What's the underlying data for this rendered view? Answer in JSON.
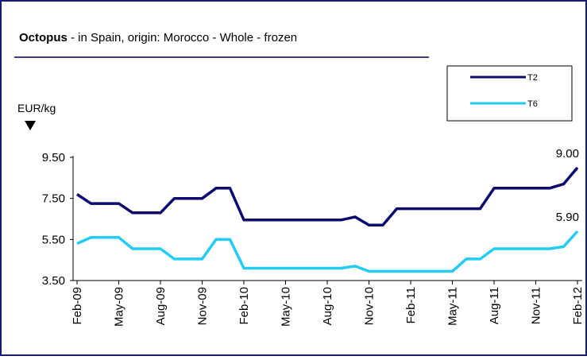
{
  "chart_data": {
    "type": "line",
    "title_bold": "Octopus",
    "title": "- in Spain, origin: Morocco - Whole - frozen",
    "y_label": "EUR/kg",
    "categories": [
      "Feb-09",
      null,
      null,
      "May-09",
      null,
      null,
      "Aug-09",
      null,
      null,
      "Nov-09",
      null,
      null,
      "Feb-10",
      null,
      null,
      "May-10",
      null,
      null,
      "Aug-10",
      null,
      null,
      "Nov-10",
      null,
      null,
      "Feb-11",
      null,
      null,
      "May-11",
      null,
      null,
      "Aug-11",
      null,
      null,
      "Nov-11",
      null,
      null,
      "Feb-12"
    ],
    "series": [
      {
        "name": "T2",
        "color": "#0b0b6e",
        "values": [
          7.7,
          7.25,
          7.25,
          7.25,
          6.8,
          6.8,
          6.8,
          7.5,
          7.5,
          7.5,
          8.0,
          8.0,
          6.45,
          6.45,
          6.45,
          6.45,
          6.45,
          6.45,
          6.45,
          6.45,
          6.6,
          6.2,
          6.2,
          7.0,
          7.0,
          7.0,
          7.0,
          7.0,
          7.0,
          7.0,
          8.0,
          8.0,
          8.0,
          8.0,
          8.0,
          8.2,
          9.0
        ],
        "value_labels": [
          null,
          null,
          null,
          null,
          null,
          null,
          null,
          null,
          null,
          null,
          null,
          null,
          null,
          null,
          null,
          null,
          null,
          null,
          null,
          null,
          null,
          null,
          null,
          null,
          null,
          null,
          null,
          null,
          null,
          null,
          null,
          null,
          null,
          null,
          null,
          null,
          "9.00"
        ]
      },
      {
        "name": "T6",
        "color": "#22ccf2",
        "values": [
          5.3,
          5.6,
          5.6,
          5.6,
          5.05,
          5.05,
          5.05,
          4.55,
          4.55,
          4.55,
          5.5,
          5.5,
          4.1,
          4.1,
          4.1,
          4.1,
          4.1,
          4.1,
          4.1,
          4.1,
          4.2,
          3.95,
          3.95,
          3.95,
          3.95,
          3.95,
          3.95,
          3.95,
          4.55,
          4.55,
          5.05,
          5.05,
          5.05,
          5.05,
          5.05,
          5.15,
          5.9
        ],
        "value_labels": [
          null,
          null,
          null,
          null,
          null,
          null,
          null,
          null,
          null,
          null,
          null,
          null,
          null,
          null,
          null,
          null,
          null,
          null,
          null,
          null,
          null,
          null,
          null,
          null,
          null,
          null,
          null,
          null,
          null,
          null,
          null,
          null,
          null,
          null,
          null,
          null,
          "5.90"
        ]
      }
    ],
    "ylim": [
      3.5,
      9.5
    ],
    "yticks": [
      {
        "value": 3.5,
        "label": "3.50"
      },
      {
        "value": 5.5,
        "label": "5.50"
      },
      {
        "value": 7.5,
        "label": "7.50"
      },
      {
        "value": 9.5,
        "label": "9.50"
      }
    ],
    "grid": false,
    "legend": "top-right"
  }
}
